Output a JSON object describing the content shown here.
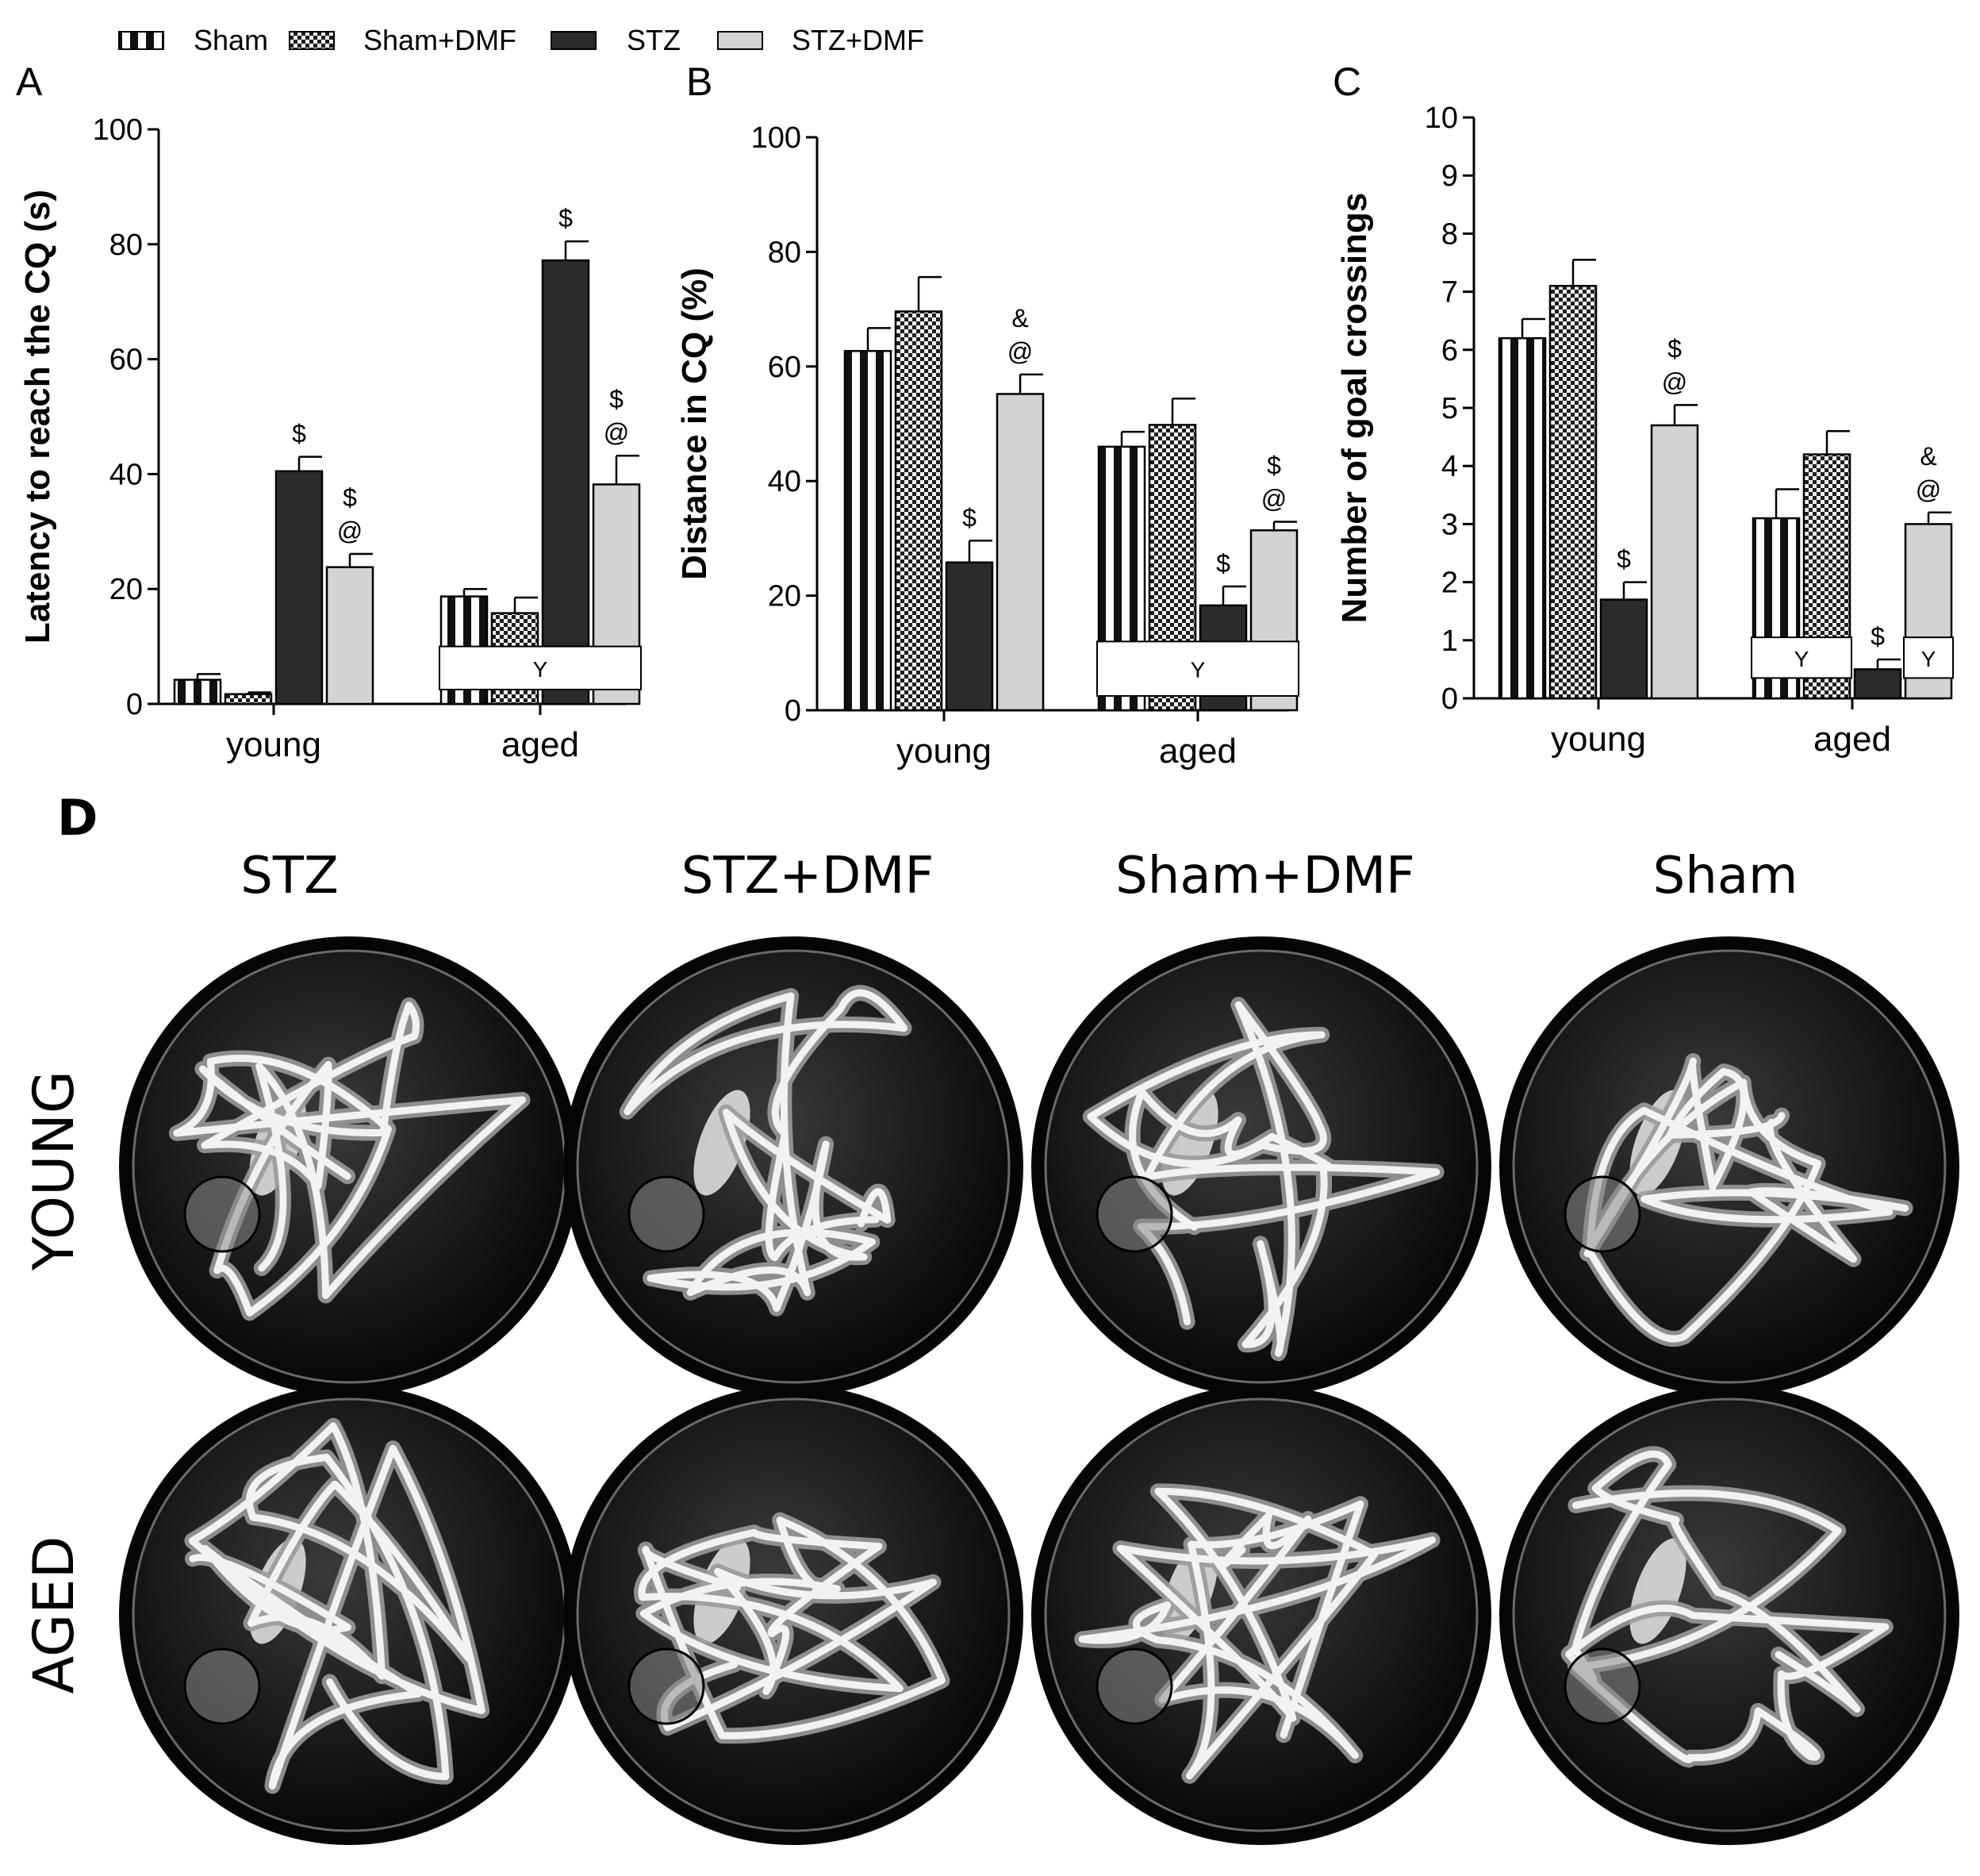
{
  "legend": [
    {
      "name": "Sham",
      "pattern": "stripes"
    },
    {
      "name": "Sham+DMF",
      "pattern": "checker"
    },
    {
      "name": "STZ",
      "pattern": "dark"
    },
    {
      "name": "STZ+DMF",
      "pattern": "light"
    }
  ],
  "colors": {
    "dark": "#2b2b2b",
    "light": "#d3d3d3",
    "stripe": "#111111",
    "checker": "#1e1e1e"
  },
  "chart_data": [
    {
      "type": "bar",
      "panel": "A",
      "ylabel": "Latency to reach the CQ (s)",
      "categories": [
        "young",
        "aged"
      ],
      "ylim": [
        0,
        100
      ],
      "yticks": [
        "0",
        "20",
        "40",
        "60",
        "80",
        "100"
      ],
      "series": [
        {
          "name": "Sham",
          "values": [
            4.2,
            18.7
          ],
          "errors": [
            1.0,
            1.3
          ]
        },
        {
          "name": "Sham+DMF",
          "values": [
            1.7,
            15.8
          ],
          "errors": [
            0.3,
            2.7
          ]
        },
        {
          "name": "STZ",
          "values": [
            40.5,
            77.2
          ],
          "errors": [
            2.5,
            3.3
          ]
        },
        {
          "name": "STZ+DMF",
          "values": [
            23.8,
            38.2
          ],
          "errors": [
            2.3,
            5.0
          ]
        }
      ],
      "annotations": [
        {
          "group": 0,
          "series": 2,
          "text": "$"
        },
        {
          "group": 0,
          "series": 3,
          "text": "$"
        },
        {
          "group": 0,
          "series": 3,
          "text": "@"
        },
        {
          "group": 1,
          "series": 2,
          "text": "$"
        },
        {
          "group": 1,
          "series": 3,
          "text": "$"
        },
        {
          "group": 1,
          "series": 3,
          "text": "@"
        }
      ],
      "boxes": [
        {
          "group": 1,
          "from": 0,
          "to": 3,
          "y_low": 2.5,
          "y_high": 10,
          "text": "Y"
        }
      ]
    },
    {
      "type": "bar",
      "panel": "B",
      "ylabel": "Distance in CQ (%)",
      "categories": [
        "young",
        "aged"
      ],
      "ylim": [
        0,
        100
      ],
      "yticks": [
        "0",
        "20",
        "40",
        "60",
        "80",
        "100"
      ],
      "series": [
        {
          "name": "Sham",
          "values": [
            62.7,
            46.0
          ],
          "errors": [
            4.0,
            2.6
          ]
        },
        {
          "name": "Sham+DMF",
          "values": [
            69.6,
            49.8
          ],
          "errors": [
            6.0,
            4.6
          ]
        },
        {
          "name": "STZ",
          "values": [
            25.8,
            18.3
          ],
          "errors": [
            3.8,
            3.3
          ]
        },
        {
          "name": "STZ+DMF",
          "values": [
            55.2,
            31.4
          ],
          "errors": [
            3.4,
            1.5
          ]
        }
      ],
      "annotations": [
        {
          "group": 0,
          "series": 2,
          "text": "$"
        },
        {
          "group": 0,
          "series": 3,
          "text": "&"
        },
        {
          "group": 0,
          "series": 3,
          "text": "@"
        },
        {
          "group": 1,
          "series": 2,
          "text": "$"
        },
        {
          "group": 1,
          "series": 3,
          "text": "$"
        },
        {
          "group": 1,
          "series": 3,
          "text": "@"
        }
      ],
      "boxes": [
        {
          "group": 1,
          "from": 0,
          "to": 3,
          "y_low": 2.5,
          "y_high": 12,
          "text": "Y"
        }
      ]
    },
    {
      "type": "bar",
      "panel": "C",
      "ylabel": "Number of goal crossings",
      "categories": [
        "young",
        "aged"
      ],
      "ylim": [
        0,
        10
      ],
      "yticks": [
        "0",
        "1",
        "2",
        "3",
        "4",
        "5",
        "6",
        "7",
        "8",
        "9",
        "10"
      ],
      "series": [
        {
          "name": "Sham",
          "values": [
            6.2,
            3.1
          ],
          "errors": [
            0.33,
            0.5
          ]
        },
        {
          "name": "Sham+DMF",
          "values": [
            7.1,
            4.2
          ],
          "errors": [
            0.45,
            0.4
          ]
        },
        {
          "name": "STZ",
          "values": [
            1.7,
            0.5
          ],
          "errors": [
            0.3,
            0.17
          ]
        },
        {
          "name": "STZ+DMF",
          "values": [
            4.7,
            3.0
          ],
          "errors": [
            0.35,
            0.2
          ]
        }
      ],
      "annotations": [
        {
          "group": 0,
          "series": 2,
          "text": "$"
        },
        {
          "group": 0,
          "series": 3,
          "text": "$"
        },
        {
          "group": 0,
          "series": 3,
          "text": "@"
        },
        {
          "group": 1,
          "series": 2,
          "text": "$"
        },
        {
          "group": 1,
          "series": 3,
          "text": "&"
        },
        {
          "group": 1,
          "series": 3,
          "text": "@"
        }
      ],
      "boxes": [
        {
          "group": 1,
          "from": 0,
          "to": 1,
          "y_low": 0.35,
          "y_high": 1.05,
          "text": "Y"
        },
        {
          "group": 1,
          "from": 3,
          "to": 3,
          "y_low": 0.35,
          "y_high": 1.05,
          "text": "Y"
        }
      ]
    }
  ],
  "panel_d": {
    "label": "D",
    "columns": [
      "STZ",
      "STZ+DMF",
      "Sham+DMF",
      "Sham"
    ],
    "rows": [
      "YOUNG",
      "AGED"
    ]
  }
}
